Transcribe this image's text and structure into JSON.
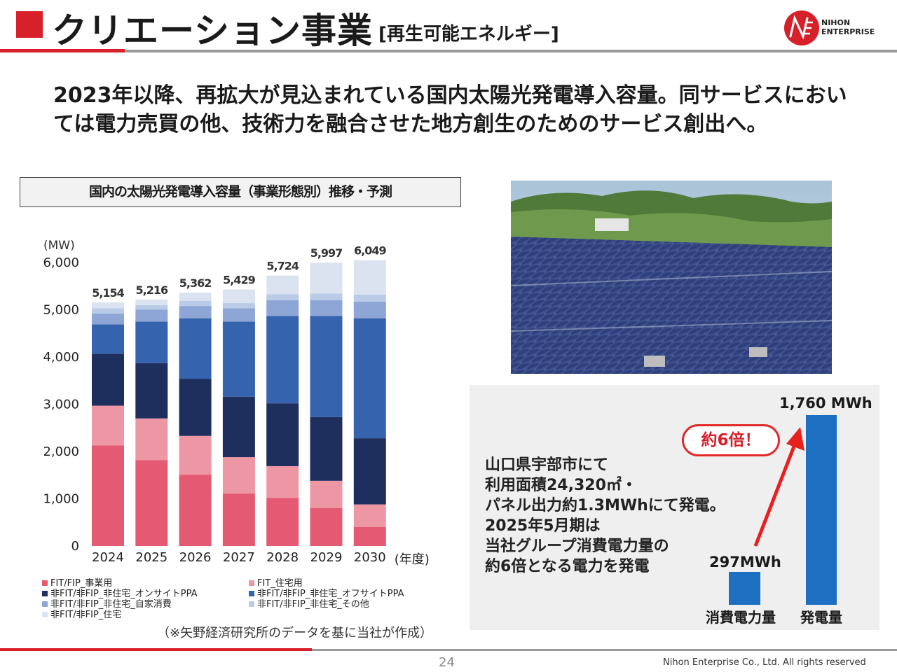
{
  "header": {
    "title": "クリエーション事業",
    "subtitle": "[再生可能エネルギー]"
  },
  "logo": {
    "line1": "NIHON",
    "line2": "ENTERPRISE"
  },
  "headline": "2023年以降、再拡大が見込まれている国内太陽光発電導入容量。同サービスにおいては電力売買の他、技術力を融合させた地方創生のためのサービス創出へ。",
  "chart_box_title": "国内の太陽光発電導入容量（事業形態別）推移・予測",
  "chart_data": {
    "type": "bar",
    "stacked": true,
    "title": "国内の太陽光発電導入容量（事業形態別）推移・予測",
    "unit_label": "(MW)",
    "xlabel_suffix": "(年度)",
    "categories": [
      "2024",
      "2025",
      "2026",
      "2027",
      "2028",
      "2029",
      "2030"
    ],
    "totals": [
      "5,154",
      "5,216",
      "5,362",
      "5,429",
      "5,724",
      "5,997",
      "6,049"
    ],
    "total_values": [
      5154,
      5216,
      5362,
      5429,
      5724,
      5997,
      6049
    ],
    "ylim": [
      0,
      6000
    ],
    "yticks": [
      0,
      1000,
      2000,
      3000,
      4000,
      5000,
      6000
    ],
    "ytick_labels": [
      "0",
      "1,000",
      "2,000",
      "3,000",
      "4,000",
      "5,000",
      "6,000"
    ],
    "grid": false,
    "legend_position": "bottom",
    "series": [
      {
        "name": "FIT/FIP_事業用",
        "color": "#e35a72",
        "values": [
          2130,
          1820,
          1510,
          1110,
          1020,
          800,
          400
        ]
      },
      {
        "name": "FIT_住宅用",
        "color": "#ee97a4",
        "values": [
          840,
          880,
          820,
          770,
          670,
          580,
          480
        ]
      },
      {
        "name": "非FIT/非FIP_非住宅_オンサイトPPA",
        "color": "#1e2f5e",
        "values": [
          1100,
          1170,
          1210,
          1280,
          1330,
          1350,
          1400
        ]
      },
      {
        "name": "非FIT/非FIP_非住宅_オフサイトPPA",
        "color": "#3563ad",
        "values": [
          620,
          880,
          1280,
          1590,
          1850,
          2140,
          2540
        ]
      },
      {
        "name": "非FIT/非FIP_非住宅_自家消費",
        "color": "#8ea6d6",
        "values": [
          230,
          250,
          260,
          280,
          330,
          330,
          350
        ]
      },
      {
        "name": "非FIT/非FIP_非住宅_その他",
        "color": "#b9cbe6",
        "values": [
          110,
          100,
          110,
          110,
          130,
          140,
          150
        ]
      },
      {
        "name": "非FIT/非FIP_住宅",
        "color": "#dbe3f1",
        "values": [
          124,
          116,
          172,
          289,
          394,
          657,
          729
        ]
      }
    ]
  },
  "chart_source": "（※矢野経済研究所のデータを基に当社が作成）",
  "info": {
    "description": "山口県宇部市にて\n利用面積24,320㎡・\nパネル出力約1.3MWhにて発電。\n2025年5月期は\n当社グループ消費電力量の\n約6倍となる電力を発電",
    "badge": "約6倍！",
    "bars": [
      {
        "label": "消費電力量",
        "value_label": "297MWh",
        "value": 297
      },
      {
        "label": "発電量",
        "value_label": "1,760 MWh",
        "value": 1760
      }
    ]
  },
  "footer": {
    "page_number": "24",
    "copyright": "Nihon Enterprise Co., Ltd. All rights reserved"
  },
  "colors": {
    "brand_red": "#d6202a",
    "accent_blue": "#1d6fc1",
    "gray_rule": "#9a9a9a"
  }
}
